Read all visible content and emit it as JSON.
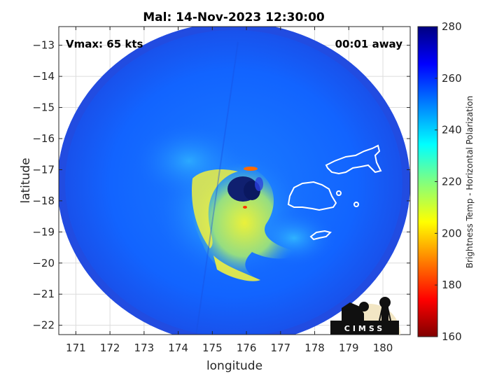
{
  "title": "Mal: 14-Nov-2023 12:30:00",
  "vmax_label": "Vmax: 65 kts",
  "time_away_label": "00:01 away",
  "x_axis": {
    "label": "longitude",
    "ticks": [
      171,
      172,
      173,
      174,
      175,
      176,
      177,
      178,
      179,
      180
    ],
    "range": [
      170.5,
      180.8
    ]
  },
  "y_axis": {
    "label": "latitude",
    "ticks": [
      -13,
      -14,
      -15,
      -16,
      -17,
      -18,
      -19,
      -20,
      -21,
      -22
    ],
    "range": [
      -22.3,
      -12.4
    ]
  },
  "colorbar": {
    "label": "Brightness Temp - Horizontal Polarization",
    "ticks": [
      280,
      260,
      240,
      220,
      200,
      180,
      160
    ],
    "range": [
      160,
      280
    ],
    "colormap": "jet"
  },
  "logo": {
    "text": "CIMSS"
  },
  "colors": {
    "background_field": "#1060ff",
    "warm_ring": "#f0f040",
    "eye": "#102070",
    "coastline": "#ffffff"
  }
}
